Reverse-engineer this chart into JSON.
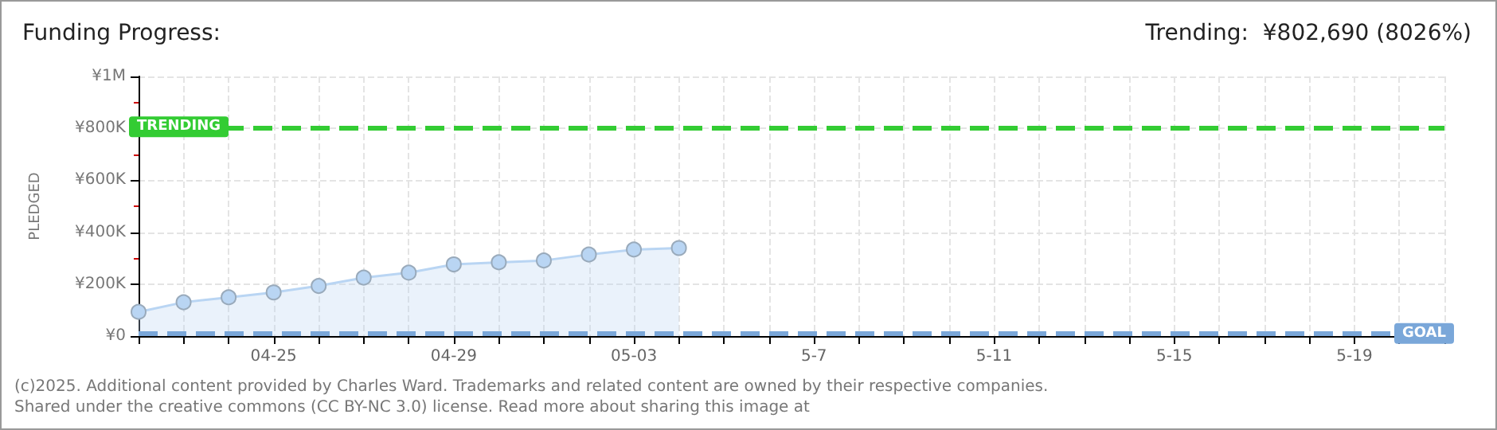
{
  "chart_data": {
    "type": "area",
    "title": "Funding Progress:",
    "subtitle": "Trending:  ¥802,690 (8026%)",
    "ylabel": "PLEDGED",
    "categories": [
      null,
      null,
      null,
      "04-25",
      null,
      null,
      null,
      "04-29",
      null,
      null,
      null,
      "05-03",
      null,
      null,
      null,
      "5-7",
      null,
      null,
      null,
      "5-11",
      null,
      null,
      null,
      "5-15",
      null,
      null,
      null,
      "5-19",
      null,
      null
    ],
    "series": [
      {
        "color": "#b9d5f3",
        "values": [
          93000,
          130000,
          149000,
          168000,
          193000,
          225000,
          244000,
          276000,
          284000,
          291000,
          314000,
          333000,
          339000,
          null,
          null,
          null,
          null,
          null,
          null,
          null,
          null,
          null,
          null,
          null,
          null,
          null,
          null,
          null,
          null,
          null
        ]
      }
    ],
    "ylim": [
      0,
      1000000
    ],
    "yticks": [
      {
        "value": 0,
        "label": "¥0"
      },
      {
        "value": 200000,
        "label": "¥200K"
      },
      {
        "value": 400000,
        "label": "¥400K"
      },
      {
        "value": 600000,
        "label": "¥600K"
      },
      {
        "value": 800000,
        "label": "¥800K"
      },
      {
        "value": 1000000,
        "label": "¥1M"
      }
    ],
    "ref_lines": [
      {
        "axis": "y",
        "value": 802690,
        "label": "TRENDING",
        "color": "#33cc33",
        "line_style": "dashed"
      },
      {
        "axis": "y",
        "value": 10000,
        "label": "GOAL",
        "color": "#7aa7d9",
        "line_style": "dashed"
      }
    ],
    "grid": true,
    "marker": "circle",
    "annotations": [
      "(c)2025. Additional content provided by Charles Ward. Trademarks and related content are owned by their respective companies.",
      "Shared under the creative commons (CC BY-NC 3.0) license. Read more about sharing this image at"
    ]
  }
}
